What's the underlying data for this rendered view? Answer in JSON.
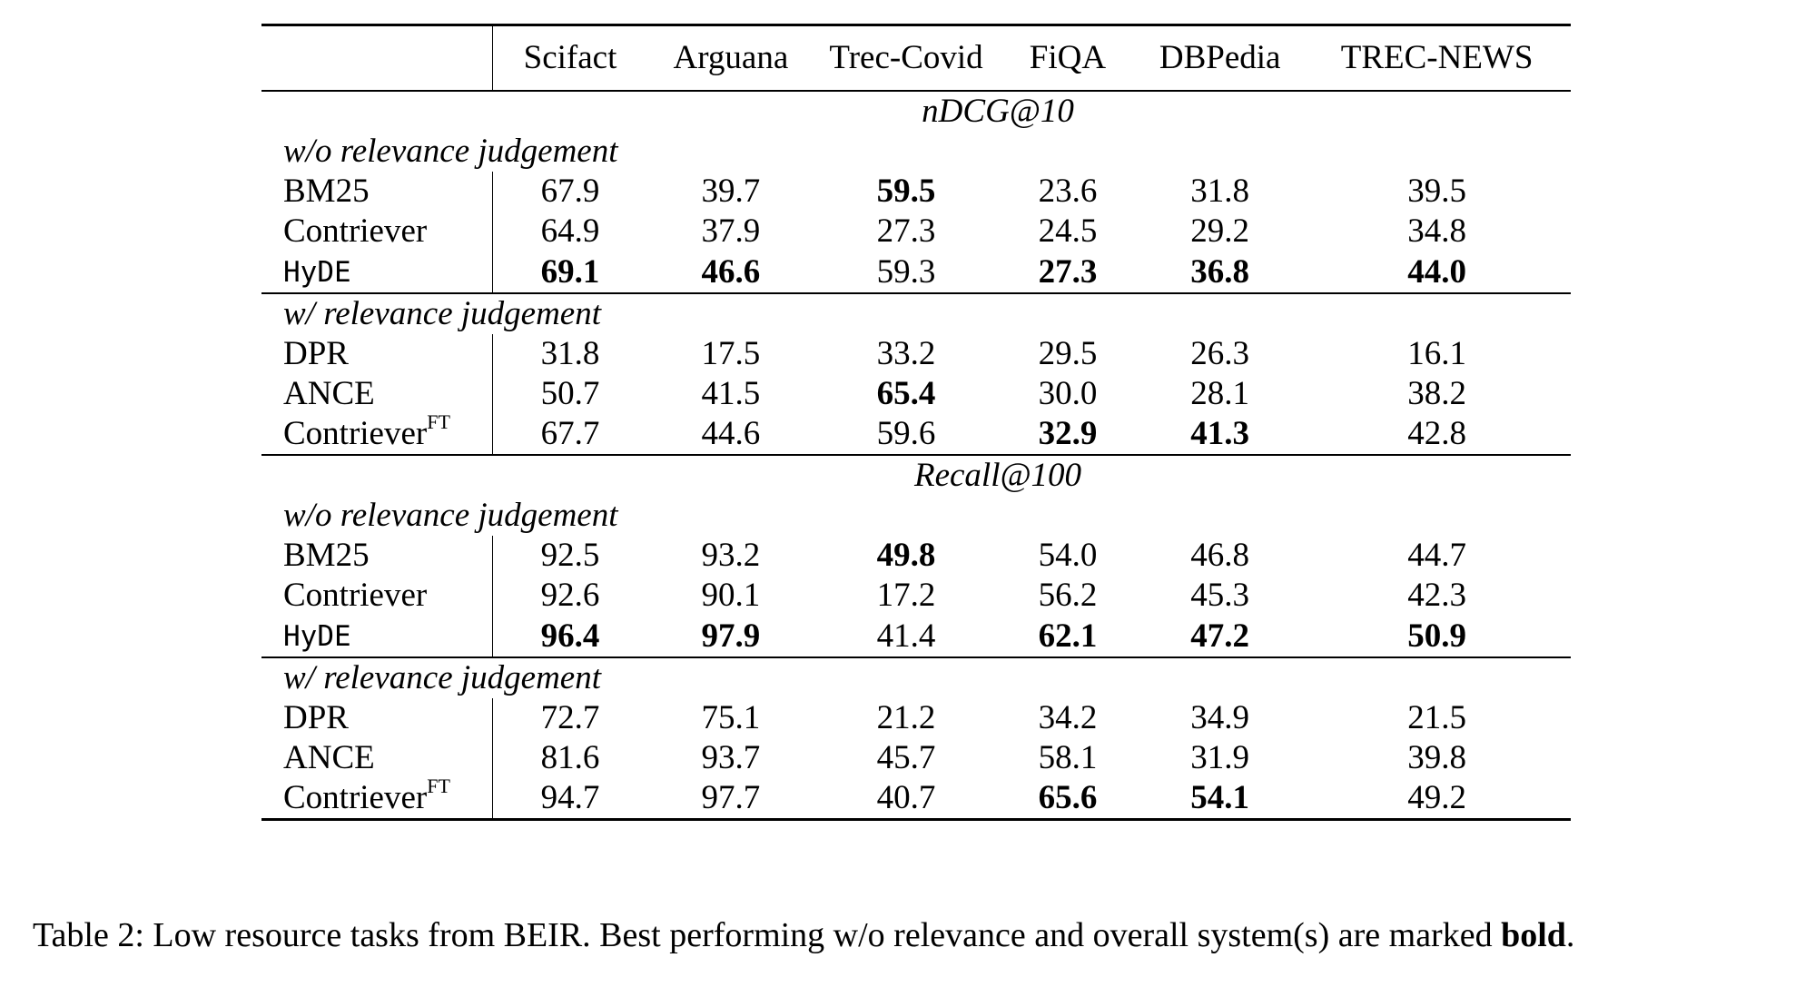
{
  "columns": [
    "",
    "Scifact",
    "Arguana",
    "Trec-Covid",
    "FiQA",
    "DBPedia",
    "TREC-NEWS"
  ],
  "sections": [
    {
      "metric": "nDCG@10",
      "groups": [
        {
          "label": "w/o relevance judgement",
          "rows": [
            {
              "model": "BM25",
              "sup": "",
              "mono": false,
              "values": [
                "67.9",
                "39.7",
                "59.5",
                "23.6",
                "31.8",
                "39.5"
              ],
              "bold": [
                false,
                false,
                true,
                false,
                false,
                false
              ]
            },
            {
              "model": "Contriever",
              "sup": "",
              "mono": false,
              "values": [
                "64.9",
                "37.9",
                "27.3",
                "24.5",
                "29.2",
                "34.8"
              ],
              "bold": [
                false,
                false,
                false,
                false,
                false,
                false
              ]
            },
            {
              "model": "HyDE",
              "sup": "",
              "mono": true,
              "values": [
                "69.1",
                "46.6",
                "59.3",
                "27.3",
                "36.8",
                "44.0"
              ],
              "bold": [
                true,
                true,
                false,
                true,
                true,
                true
              ]
            }
          ]
        },
        {
          "label": "w/ relevance judgement",
          "rows": [
            {
              "model": "DPR",
              "sup": "",
              "mono": false,
              "values": [
                "31.8",
                "17.5",
                "33.2",
                "29.5",
                "26.3",
                "16.1"
              ],
              "bold": [
                false,
                false,
                false,
                false,
                false,
                false
              ]
            },
            {
              "model": "ANCE",
              "sup": "",
              "mono": false,
              "values": [
                "50.7",
                "41.5",
                "65.4",
                "30.0",
                "28.1",
                "38.2"
              ],
              "bold": [
                false,
                false,
                true,
                false,
                false,
                false
              ]
            },
            {
              "model": "Contriever",
              "sup": "FT",
              "mono": false,
              "values": [
                "67.7",
                "44.6",
                "59.6",
                "32.9",
                "41.3",
                "42.8"
              ],
              "bold": [
                false,
                false,
                false,
                true,
                true,
                false
              ]
            }
          ]
        }
      ]
    },
    {
      "metric": "Recall@100",
      "groups": [
        {
          "label": "w/o relevance judgement",
          "rows": [
            {
              "model": "BM25",
              "sup": "",
              "mono": false,
              "values": [
                "92.5",
                "93.2",
                "49.8",
                "54.0",
                "46.8",
                "44.7"
              ],
              "bold": [
                false,
                false,
                true,
                false,
                false,
                false
              ]
            },
            {
              "model": "Contriever",
              "sup": "",
              "mono": false,
              "values": [
                "92.6",
                "90.1",
                "17.2",
                "56.2",
                "45.3",
                "42.3"
              ],
              "bold": [
                false,
                false,
                false,
                false,
                false,
                false
              ]
            },
            {
              "model": "HyDE",
              "sup": "",
              "mono": true,
              "values": [
                "96.4",
                "97.9",
                "41.4",
                "62.1",
                "47.2",
                "50.9"
              ],
              "bold": [
                true,
                true,
                false,
                true,
                true,
                true
              ]
            }
          ]
        },
        {
          "label": "w/ relevance judgement",
          "rows": [
            {
              "model": "DPR",
              "sup": "",
              "mono": false,
              "values": [
                "72.7",
                "75.1",
                "21.2",
                "34.2",
                "34.9",
                "21.5"
              ],
              "bold": [
                false,
                false,
                false,
                false,
                false,
                false
              ]
            },
            {
              "model": "ANCE",
              "sup": "",
              "mono": false,
              "values": [
                "81.6",
                "93.7",
                "45.7",
                "58.1",
                "31.9",
                "39.8"
              ],
              "bold": [
                false,
                false,
                false,
                false,
                false,
                false
              ]
            },
            {
              "model": "Contriever",
              "sup": "FT",
              "mono": false,
              "values": [
                "94.7",
                "97.7",
                "40.7",
                "65.6",
                "54.1",
                "49.2"
              ],
              "bold": [
                false,
                false,
                false,
                true,
                true,
                false
              ]
            }
          ]
        }
      ]
    }
  ],
  "caption": {
    "prefix": "Table 2: Low resource tasks from BEIR. Best performing w/o relevance and overall system(s) are marked ",
    "bold_word": "bold",
    "suffix": "."
  }
}
